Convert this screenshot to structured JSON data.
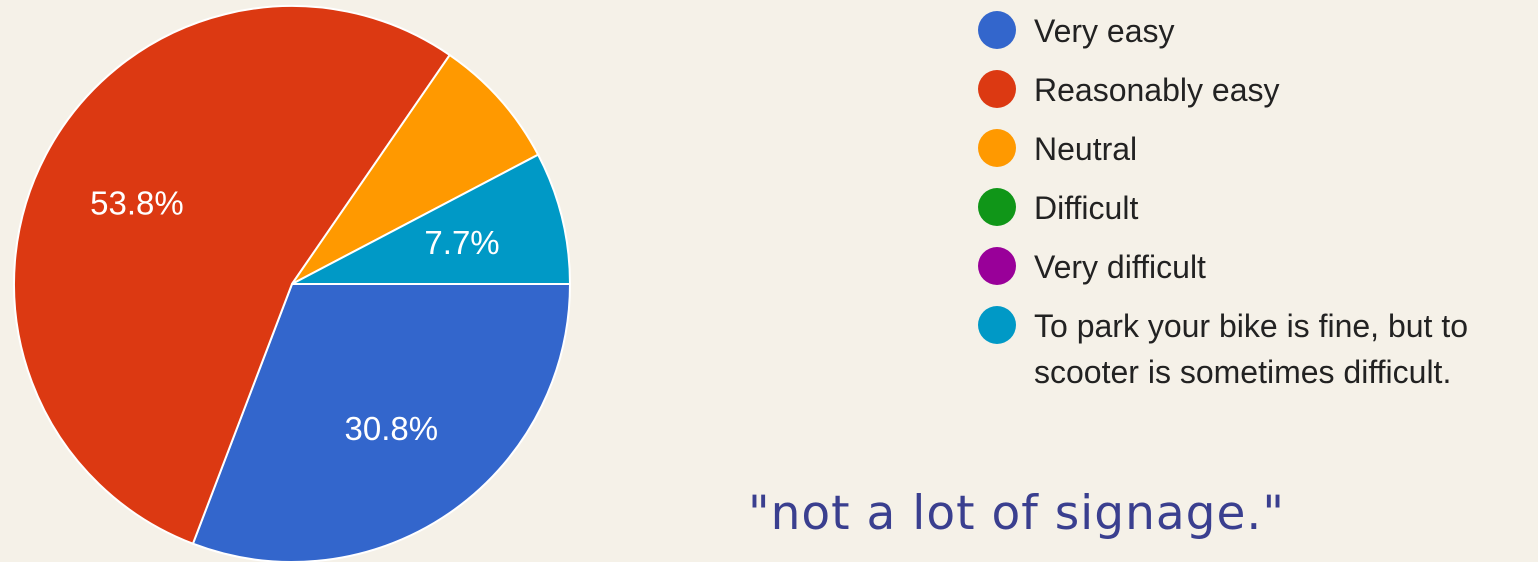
{
  "chart_data": {
    "type": "pie",
    "title": "",
    "slices": [
      {
        "label": "Very easy",
        "value": 30.8,
        "display": "30.8%",
        "color": "#3366cc"
      },
      {
        "label": "Reasonably easy",
        "value": 53.8,
        "display": "53.8%",
        "color": "#dc3912"
      },
      {
        "label": "Neutral",
        "value": 7.7,
        "display": "",
        "color": "#ff9900"
      },
      {
        "label": "Difficult",
        "value": 0,
        "display": "",
        "color": "#109618"
      },
      {
        "label": "Very difficult",
        "value": 0,
        "display": "",
        "color": "#990099"
      },
      {
        "label": "To park your bike is fine, but to\nscooter is sometimes difficult.",
        "value": 7.7,
        "display": "7.7%",
        "color": "#0099c6"
      }
    ],
    "legend_position": "right"
  },
  "quote": "\"not a lot of signage.\""
}
